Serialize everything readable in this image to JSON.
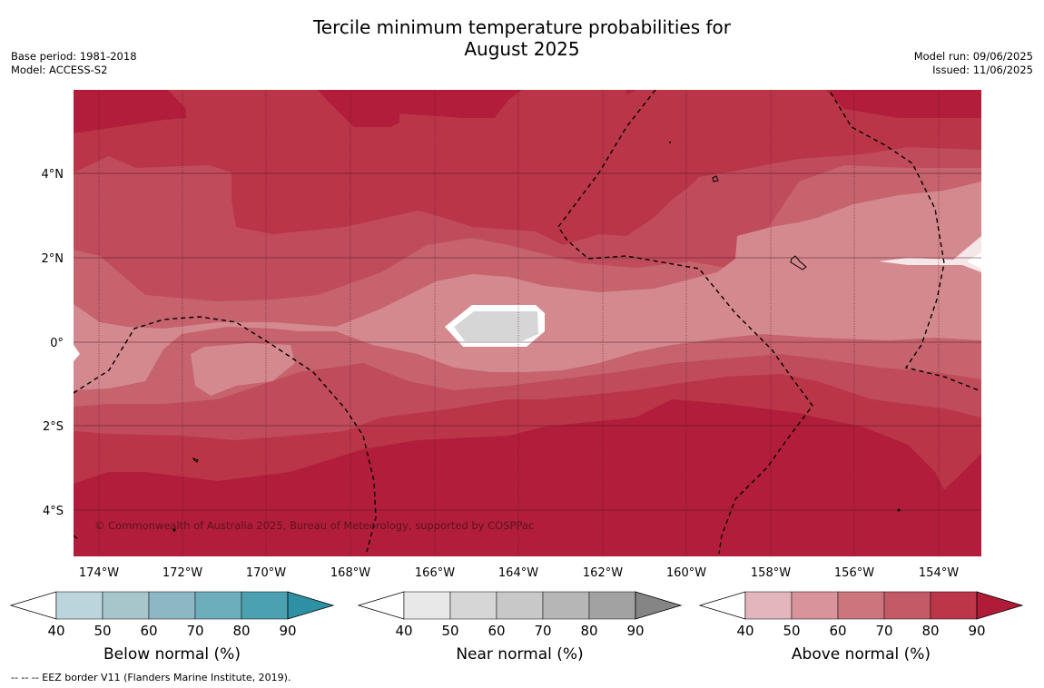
{
  "title_line1": "Tercile minimum temperature probabilities for",
  "title_line2": "August 2025",
  "meta_left": [
    "Base period: 1981-2018",
    "Model: ACCESS-S2"
  ],
  "meta_right": [
    "Model run: 09/06/2025",
    "Issued: 11/06/2025"
  ],
  "lon_labels": [
    "174°W",
    "172°W",
    "170°W",
    "168°W",
    "166°W",
    "164°W",
    "162°W",
    "160°W",
    "158°W",
    "156°W",
    "154°W"
  ],
  "lat_labels": [
    "4°N",
    "2°N",
    "0°",
    "2°S",
    "4°S"
  ],
  "copyright": "© Commonwealth of Australia 2025, Bureau of Meteorology, supported by COSPPac",
  "footnote": "--  --  -- EEZ border V11 (Flanders Marine Institute, 2019).",
  "colorbars": [
    {
      "title": "Below normal (%)",
      "ticks": [
        "40",
        "50",
        "60",
        "70",
        "80",
        "90"
      ],
      "colors": [
        "#bcd4dc",
        "#a6c6cc",
        "#8cb8c5",
        "#6daebc",
        "#4ba0b1",
        "#2e90a4"
      ]
    },
    {
      "title": "Near normal (%)",
      "ticks": [
        "40",
        "50",
        "60",
        "70",
        "80",
        "90"
      ],
      "colors": [
        "#e8e8e8",
        "#d6d6d6",
        "#c8c8c8",
        "#b6b6b6",
        "#a2a2a2",
        "#858585"
      ]
    },
    {
      "title": "Above normal (%)",
      "ticks": [
        "40",
        "50",
        "60",
        "70",
        "80",
        "90"
      ],
      "colors": [
        "#e2b6bc",
        "#d9939a",
        "#cd757d",
        "#c45a66",
        "#bd3548",
        "#b01c37"
      ]
    }
  ],
  "colors": {
    "above_40": "#f5e6e8",
    "above_50": "#d4898f",
    "above_60": "#c6636d",
    "above_70": "#c04b5b",
    "above_80": "#b93547",
    "above_90": "#b11d3a",
    "near_50": "#d6d6d6",
    "near_white": "#ffffff"
  }
}
